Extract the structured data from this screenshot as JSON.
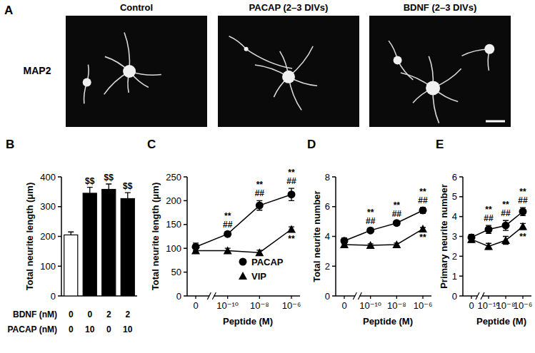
{
  "images": {
    "title": "A",
    "stain_label": "MAP2",
    "panels": [
      "Control",
      "PACAP (2–3 DIVs)",
      "BDNF (2–3 DIVs)"
    ]
  },
  "chart_data": [
    {
      "type": "bar",
      "title": "B",
      "categories": [
        null,
        null,
        null,
        null
      ],
      "values": [
        205,
        345,
        358,
        327
      ],
      "errors": [
        10,
        20,
        18,
        20
      ],
      "colors": [
        "#ffffff",
        "#000000",
        "#000000",
        "#000000"
      ],
      "annotations": [
        null,
        "$$",
        "$$",
        "$$"
      ],
      "y_label": "Total neurite length (μm)",
      "ylim": [
        0,
        400
      ],
      "yticks": [
        0,
        100,
        200,
        300,
        400
      ],
      "condition_table": [
        {
          "label": "BDNF (nM)",
          "values": [
            0,
            0,
            2,
            2
          ]
        },
        {
          "label": "PACAP (nM)",
          "values": [
            0,
            10,
            0,
            10
          ]
        }
      ]
    },
    {
      "type": "line",
      "title": "C",
      "categories": [
        "0",
        "10⁻¹⁰",
        "10⁻⁸",
        "10⁻⁶"
      ],
      "x_label": "Peptide (M)",
      "y_label": "Total neurite length (μm)",
      "ylim": [
        0,
        250
      ],
      "yticks": [
        0,
        50,
        100,
        150,
        200,
        250
      ],
      "legend": "lower right",
      "series": [
        {
          "name": "PACAP",
          "color": "#000000",
          "marker": "circle",
          "values": [
            103,
            130,
            190,
            213
          ],
          "errors": [
            8,
            5,
            10,
            13
          ],
          "annotations": [
            null,
            [
              "**",
              "##"
            ],
            [
              "**",
              "##"
            ],
            [
              "**",
              "##"
            ]
          ]
        },
        {
          "name": "VIP",
          "color": "#000000",
          "marker": "triangle",
          "values": [
            95,
            95,
            91,
            140
          ],
          "errors": [
            5,
            5,
            5,
            5
          ],
          "annotations": [
            null,
            null,
            null,
            [
              "**"
            ]
          ]
        }
      ]
    },
    {
      "type": "line",
      "title": "D",
      "categories": [
        "0",
        "10⁻¹⁰",
        "10⁻⁸",
        "10⁻⁶"
      ],
      "x_label": "Peptide (M)",
      "y_label": "Total neurite number",
      "ylim": [
        0,
        8
      ],
      "yticks": [
        0,
        2,
        4,
        6,
        8
      ],
      "series": [
        {
          "color": "#000000",
          "marker": "circle",
          "values": [
            3.7,
            4.4,
            4.9,
            5.75
          ],
          "errors": [
            0.2,
            0.15,
            0.15,
            0.2
          ],
          "annotations": [
            null,
            [
              "**",
              "##"
            ],
            [
              "**",
              "##"
            ],
            [
              "**",
              "##"
            ]
          ]
        },
        {
          "color": "#000000",
          "marker": "triangle",
          "values": [
            3.45,
            3.4,
            3.45,
            4.5
          ],
          "errors": [
            0.15,
            0.1,
            0.1,
            0.1
          ],
          "annotations": [
            null,
            null,
            null,
            [
              "**"
            ]
          ]
        }
      ]
    },
    {
      "type": "line",
      "title": "E",
      "categories": [
        "0",
        "10⁻¹⁰",
        "10⁻⁸",
        "10⁻⁶"
      ],
      "x_label": "Peptide (M)",
      "y_label": "Primary neurite number",
      "ylim": [
        0,
        6
      ],
      "yticks": [
        0,
        1,
        2,
        3,
        4,
        5,
        6
      ],
      "series": [
        {
          "color": "#000000",
          "marker": "circle",
          "values": [
            2.95,
            3.35,
            3.55,
            4.25
          ],
          "errors": [
            0.15,
            0.2,
            0.25,
            0.2
          ],
          "annotations": [
            null,
            [
              "**",
              "##"
            ],
            [
              "**",
              "##"
            ],
            [
              "**",
              "##"
            ]
          ]
        },
        {
          "color": "#000000",
          "marker": "triangle",
          "values": [
            2.85,
            2.5,
            2.8,
            3.5
          ],
          "errors": [
            0.15,
            0.15,
            0.2,
            0.15
          ],
          "annotations": [
            null,
            null,
            null,
            [
              "**"
            ]
          ]
        }
      ]
    }
  ]
}
